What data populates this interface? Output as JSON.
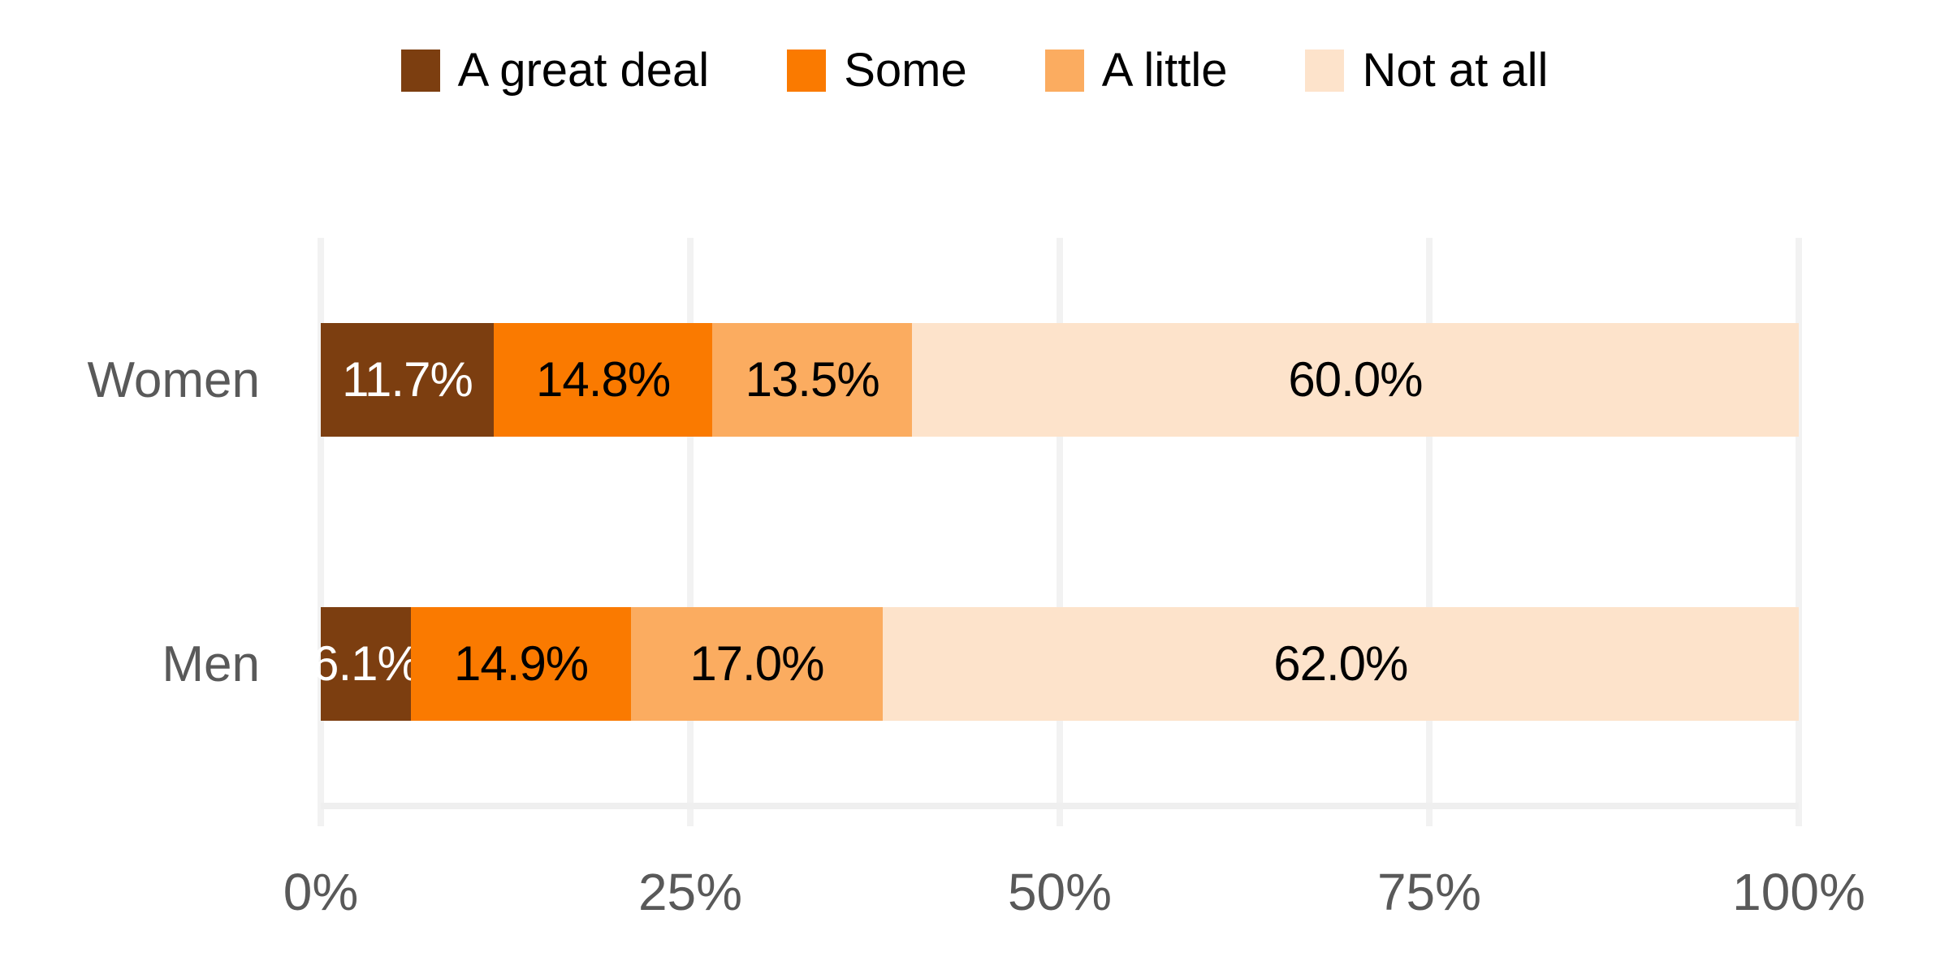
{
  "chart_data": {
    "type": "bar",
    "stacked": true,
    "orientation": "horizontal",
    "categories": [
      "Women",
      "Men"
    ],
    "series": [
      {
        "name": "A great deal",
        "color": "#7C3E10",
        "values": [
          11.7,
          6.1
        ]
      },
      {
        "name": "Some",
        "color": "#FA7A00",
        "values": [
          14.8,
          14.9
        ]
      },
      {
        "name": "A little",
        "color": "#FBAC60",
        "values": [
          13.5,
          17.0
        ]
      },
      {
        "name": "Not at all",
        "color": "#FDE3CB",
        "values": [
          60.0,
          62.0
        ]
      }
    ],
    "value_labels": [
      [
        "11.7%",
        "14.8%",
        "13.5%",
        "60.0%"
      ],
      [
        "6.1%",
        "14.9%",
        "17.0%",
        "62.0%"
      ]
    ],
    "label_colors": [
      "#FFFFFF",
      "#000000",
      "#000000",
      "#000000"
    ],
    "title": "",
    "xlabel": "",
    "ylabel": "",
    "xlim": [
      0,
      100
    ],
    "x_ticks": [
      "0%",
      "25%",
      "50%",
      "75%",
      "100%"
    ],
    "grid": "vertical",
    "gridline_color": "#F2F2F2",
    "legend_position": "top",
    "axis_text_color": "#595959",
    "background_color": "#FFFFFF"
  }
}
